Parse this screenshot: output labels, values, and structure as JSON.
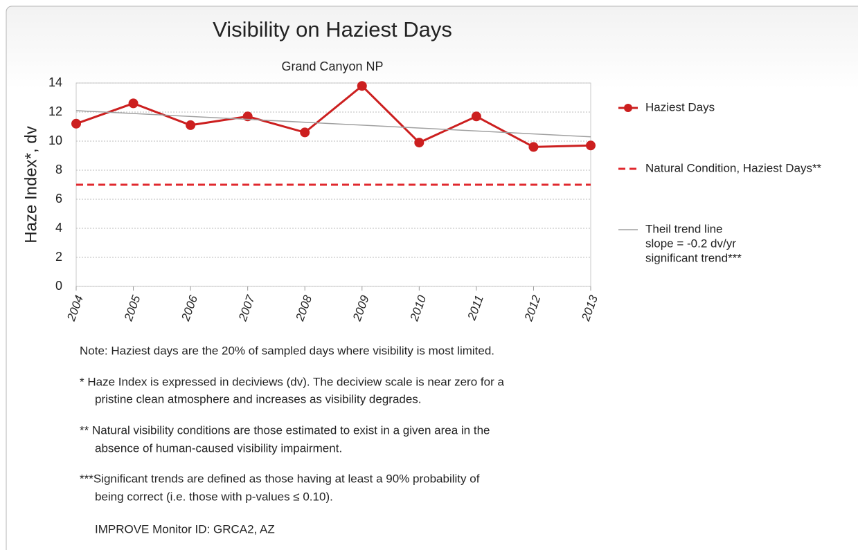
{
  "chart_data": {
    "type": "line",
    "title": "Visibility on Haziest Days",
    "subtitle": "Grand Canyon NP",
    "y_label": "Haze Index*, dv",
    "x": [
      2004,
      2005,
      2006,
      2007,
      2008,
      2009,
      2010,
      2011,
      2012,
      2013
    ],
    "xlim": [
      2004,
      2013
    ],
    "xticks": [
      2004,
      2005,
      2006,
      2007,
      2008,
      2009,
      2010,
      2011,
      2012,
      2013
    ],
    "ylim": [
      0,
      14
    ],
    "yticks": [
      0,
      2,
      4,
      6,
      8,
      10,
      12,
      14
    ],
    "grid": true,
    "legend": "right",
    "series": [
      {
        "name": "Haziest Days",
        "color": "#cc1f1f",
        "style": "solid-markers",
        "values": [
          11.2,
          12.6,
          11.1,
          11.7,
          10.6,
          13.8,
          9.9,
          11.7,
          9.6,
          9.7
        ]
      },
      {
        "name": "Natural Condition, Haziest Days**",
        "color": "#e0282e",
        "style": "dashed",
        "values": [
          7.0,
          7.0,
          7.0,
          7.0,
          7.0,
          7.0,
          7.0,
          7.0,
          7.0,
          7.0
        ]
      },
      {
        "name": "Theil trend line",
        "color": "#a0a0a0",
        "style": "thin",
        "x": [
          2004,
          2013
        ],
        "values": [
          12.1,
          10.3
        ],
        "annotations": [
          "slope = -0.2 dv/yr",
          "significant trend***"
        ]
      }
    ],
    "notes": [
      [
        "Note: Haziest days are the 20% of sampled days where visibility is most limited."
      ],
      [
        "*  Haze Index is expressed in deciviews (dv). The deciview scale is near zero for a",
        "pristine clean atmosphere and increases as visibility degrades."
      ],
      [
        "** Natural visibility conditions are those estimated to exist in a given area in the",
        "absence of human-caused visibility impairment."
      ],
      [
        "***Significant trends are defined as those having at least a 90% probability of",
        "being correct (i.e. those with p-values ≤ 0.10)."
      ],
      [
        "IMPROVE Monitor ID: GRCA2, AZ"
      ]
    ]
  }
}
